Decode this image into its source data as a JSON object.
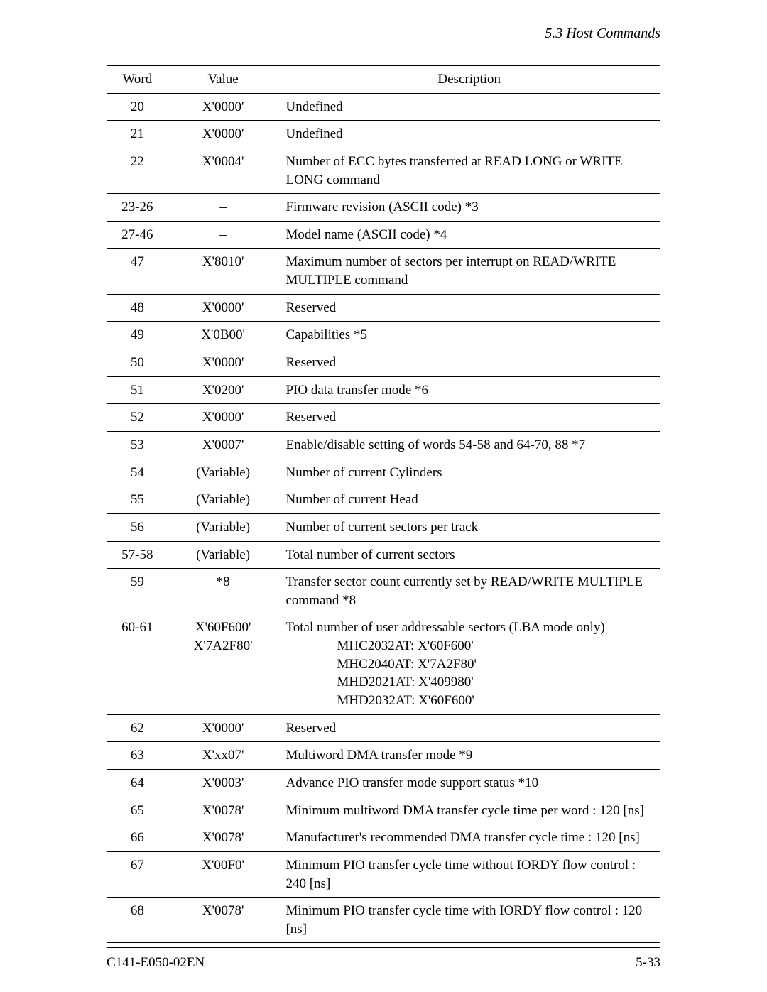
{
  "header": {
    "section": "5.3  Host Commands"
  },
  "table": {
    "columns": {
      "word": "Word",
      "value": "Value",
      "description": "Description"
    },
    "rows": [
      {
        "word": "20",
        "value": "X'0000'",
        "desc": "Undefined"
      },
      {
        "word": "21",
        "value": "X'0000'",
        "desc": "Undefined"
      },
      {
        "word": "22",
        "value": "X'0004'",
        "desc": "Number of ECC bytes transferred at READ LONG or WRITE LONG command"
      },
      {
        "word": "23-26",
        "value": "–",
        "desc": "Firmware revision (ASCII code) *3"
      },
      {
        "word": "27-46",
        "value": "–",
        "desc": "Model name (ASCII code) *4"
      },
      {
        "word": "47",
        "value": "X'8010'",
        "desc": "Maximum number of sectors per interrupt on READ/WRITE MULTIPLE command"
      },
      {
        "word": "48",
        "value": "X'0000'",
        "desc": "Reserved"
      },
      {
        "word": "49",
        "value": "X'0B00'",
        "desc": "Capabilities *5"
      },
      {
        "word": "50",
        "value": "X'0000'",
        "desc": "Reserved"
      },
      {
        "word": "51",
        "value": "X'0200'",
        "desc": "PIO data transfer mode *6"
      },
      {
        "word": "52",
        "value": "X'0000'",
        "desc": "Reserved"
      },
      {
        "word": "53",
        "value": "X'0007'",
        "desc": "Enable/disable setting of words 54-58 and 64-70, 88 *7"
      },
      {
        "word": "54",
        "value": "(Variable)",
        "desc": "Number of current Cylinders"
      },
      {
        "word": "55",
        "value": "(Variable)",
        "desc": "Number of current Head"
      },
      {
        "word": "56",
        "value": "(Variable)",
        "desc": "Number of current sectors per track"
      },
      {
        "word": "57-58",
        "value": "(Variable)",
        "desc": "Total number of current sectors"
      },
      {
        "word": "59",
        "value": "*8",
        "desc": "Transfer sector count currently set by READ/WRITE MULTIPLE command *8"
      },
      {
        "word": "60-61",
        "value_lines": [
          "X'60F600'",
          "X'7A2F80'"
        ],
        "desc_line1": "Total number of user addressable sectors (LBA mode only)",
        "desc_sub": [
          "MHC2032AT:  X'60F600'",
          "MHC2040AT:  X'7A2F80'",
          "MHD2021AT:  X'409980'",
          "MHD2032AT:  X'60F600'"
        ]
      },
      {
        "word": "62",
        "value": "X'0000'",
        "desc": "Reserved"
      },
      {
        "word": "63",
        "value": "X'xx07'",
        "desc": "Multiword DMA transfer mode *9"
      },
      {
        "word": "64",
        "value": "X'0003'",
        "desc": "Advance PIO transfer mode support status *10"
      },
      {
        "word": "65",
        "value": "X'0078'",
        "desc": "Minimum multiword DMA transfer cycle time per word : 120 [ns]"
      },
      {
        "word": "66",
        "value": "X'0078'",
        "desc": "Manufacturer's recommended DMA transfer cycle time : 120 [ns]"
      },
      {
        "word": "67",
        "value": "X'00F0'",
        "desc": "Minimum PIO transfer cycle time without IORDY flow control : 240 [ns]"
      },
      {
        "word": "68",
        "value": "X'0078'",
        "desc": "Minimum PIO transfer cycle time with IORDY flow control : 120 [ns]"
      }
    ]
  },
  "footer": {
    "doc_id": "C141-E050-02EN",
    "page": "5-33"
  }
}
